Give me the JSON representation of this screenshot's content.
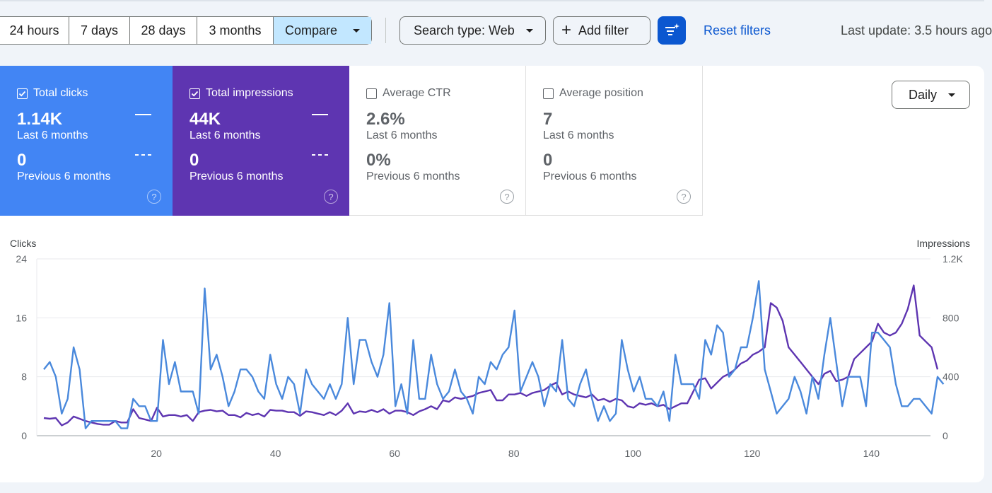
{
  "toolbar": {
    "ranges": [
      "24 hours",
      "7 days",
      "28 days",
      "3 months"
    ],
    "compare_label": "Compare",
    "search_type_label": "Search type: Web",
    "add_filter_label": "Add filter",
    "reset_filters_label": "Reset filters",
    "last_update": "Last update: 3.5 hours ago"
  },
  "cards": [
    {
      "title": "Total clicks",
      "checked": true,
      "value_current": "1.14K",
      "label_current": "Last 6 months",
      "value_previous": "0",
      "label_previous": "Previous 6 months",
      "color": "#4285f4"
    },
    {
      "title": "Total impressions",
      "checked": true,
      "value_current": "44K",
      "label_current": "Last 6 months",
      "value_previous": "0",
      "label_previous": "Previous 6 months",
      "color": "#5e35b1"
    },
    {
      "title": "Average CTR",
      "checked": false,
      "value_current": "2.6%",
      "label_current": "Last 6 months",
      "value_previous": "0%",
      "label_previous": "Previous 6 months"
    },
    {
      "title": "Average position",
      "checked": false,
      "value_current": "7",
      "label_current": "Last 6 months",
      "value_previous": "0",
      "label_previous": "Previous 6 months"
    }
  ],
  "granularity_label": "Daily",
  "help_glyph": "?",
  "chart_data": {
    "type": "line",
    "ylabel_left": "Clicks",
    "ylabel_right": "Impressions",
    "yticks_left": [
      "0",
      "8",
      "16",
      "24"
    ],
    "yticks_right": [
      "0",
      "400",
      "800",
      "1.2K"
    ],
    "ylim_left": [
      0,
      24
    ],
    "ylim_right": [
      0,
      1200
    ],
    "xticks": [
      20,
      40,
      60,
      80,
      100,
      120,
      140
    ],
    "xlim": [
      1,
      151
    ],
    "grid": true,
    "series": [
      {
        "name": "Clicks",
        "axis": "left",
        "color": "#4a89dc",
        "values": [
          9,
          10,
          8,
          3,
          5,
          12,
          9,
          1,
          2,
          2,
          2,
          2,
          2,
          1,
          1,
          5,
          4,
          4,
          2,
          2,
          13,
          7,
          10,
          6,
          6,
          6,
          3,
          20,
          9,
          11,
          8,
          4,
          6,
          9,
          9,
          8,
          6,
          5,
          11,
          7,
          5,
          8,
          7,
          3,
          9,
          7,
          6,
          5,
          7,
          5,
          7,
          16,
          7,
          13,
          13,
          10,
          8,
          11,
          18,
          4,
          7,
          3,
          13,
          5,
          5,
          11,
          7,
          5,
          6,
          9,
          6,
          5,
          3,
          8,
          7,
          10,
          9,
          11,
          12,
          17,
          6,
          8,
          10,
          8,
          4,
          7,
          6,
          13,
          5,
          4,
          7,
          9,
          5,
          2,
          4,
          2,
          3,
          13,
          9,
          6,
          8,
          5,
          5,
          4,
          6,
          2,
          11,
          7,
          7,
          7,
          5,
          13,
          11,
          15,
          14,
          8,
          9,
          12,
          12,
          16,
          21,
          9,
          6,
          3,
          4,
          5,
          8,
          6,
          3,
          8,
          5,
          11,
          16,
          10,
          4,
          8,
          8,
          8,
          4,
          14,
          14,
          13,
          12,
          7,
          4,
          4,
          5,
          5,
          4,
          3,
          8,
          7
        ]
      },
      {
        "name": "Impressions",
        "axis": "right",
        "color": "#5e35b1",
        "values": [
          120,
          115,
          120,
          70,
          90,
          130,
          115,
          100,
          90,
          80,
          75,
          75,
          100,
          90,
          90,
          180,
          120,
          110,
          100,
          190,
          130,
          140,
          140,
          130,
          140,
          100,
          160,
          170,
          175,
          165,
          170,
          140,
          140,
          125,
          155,
          140,
          150,
          130,
          175,
          170,
          170,
          160,
          160,
          135,
          165,
          160,
          150,
          140,
          160,
          140,
          170,
          220,
          150,
          165,
          160,
          175,
          160,
          180,
          150,
          170,
          170,
          160,
          140,
          165,
          180,
          200,
          180,
          240,
          230,
          260,
          250,
          260,
          270,
          290,
          300,
          310,
          240,
          240,
          280,
          280,
          290,
          270,
          290,
          300,
          310,
          340,
          360,
          280,
          300,
          280,
          270,
          260,
          280,
          240,
          250,
          230,
          250,
          240,
          200,
          190,
          220,
          210,
          220,
          200,
          210,
          180,
          200,
          220,
          220,
          300,
          380,
          390,
          320,
          360,
          400,
          420,
          450,
          490,
          510,
          550,
          570,
          600,
          900,
          870,
          780,
          600,
          550,
          500,
          450,
          400,
          350,
          420,
          440,
          370,
          380,
          400,
          520,
          560,
          600,
          640,
          760,
          700,
          680,
          700,
          760,
          860,
          1020,
          680,
          640,
          600,
          450
        ]
      }
    ]
  }
}
